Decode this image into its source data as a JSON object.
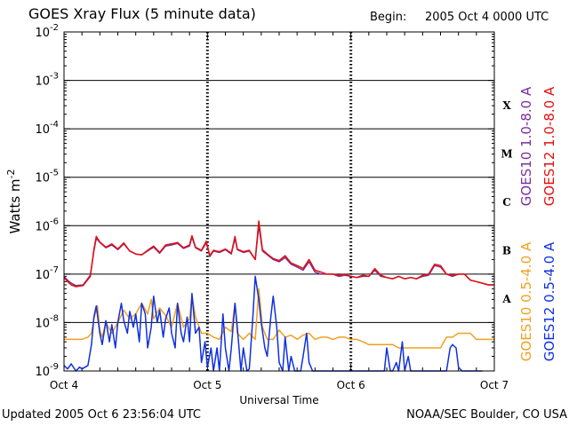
{
  "chart_data": {
    "type": "line",
    "title": "GOES Xray Flux (5 minute data)",
    "begin_label": "Begin:",
    "begin_value": "2005 Oct 4 0000 UTC",
    "xlabel": "Universal Time",
    "ylabel_base": "Watts m",
    "ylabel_exp": "-2",
    "y_scale": "log",
    "ylim": [
      1e-09,
      0.01
    ],
    "xlim": [
      0,
      72
    ],
    "x_ticks": [
      {
        "x": 0,
        "label": "Oct 4"
      },
      {
        "x": 24,
        "label": "Oct 5"
      },
      {
        "x": 48,
        "label": "Oct 6"
      },
      {
        "x": 72,
        "label": "Oct 7"
      }
    ],
    "y_ticks": [
      {
        "exp": -2,
        "base": "10",
        "sup": "-2"
      },
      {
        "exp": -3,
        "base": "10",
        "sup": "-3"
      },
      {
        "exp": -4,
        "base": "10",
        "sup": "-4"
      },
      {
        "exp": -5,
        "base": "10",
        "sup": "-5"
      },
      {
        "exp": -6,
        "base": "10",
        "sup": "-6"
      },
      {
        "exp": -7,
        "base": "10",
        "sup": "-7"
      },
      {
        "exp": -8,
        "base": "10",
        "sup": "-8"
      },
      {
        "exp": -9,
        "base": "10",
        "sup": "-9"
      }
    ],
    "flare_classes": [
      {
        "label": "X",
        "exp": -3.5
      },
      {
        "label": "M",
        "exp": -4.5
      },
      {
        "label": "C",
        "exp": -5.5
      },
      {
        "label": "B",
        "exp": -6.5
      },
      {
        "label": "A",
        "exp": -7.5
      }
    ],
    "grid": "horizontal at decades from 1e-8 to 1e-3, dashed vertical day dividers",
    "legend_right_outer": [
      {
        "name": "GOES10 1.0-8.0 A",
        "color": "#7a2e9e"
      },
      {
        "name": "GOES10 0.5-4.0 A",
        "color": "#f0a020"
      }
    ],
    "legend_right_inner": [
      {
        "name": "GOES12 1.0-8.0 A",
        "color": "#e21010"
      },
      {
        "name": "GOES12 0.5-4.0 A",
        "color": "#1030e0"
      }
    ],
    "series": [
      {
        "name": "GOES10 1.0-8.0 A",
        "color": "#7a2e9e",
        "x": [
          0,
          0.6,
          1.2,
          2.0,
          3.2,
          4.4,
          5.0,
          5.4,
          6.0,
          7.0,
          8.0,
          9.0,
          10.0,
          11.0,
          12.0,
          13.0,
          14.0,
          15.0,
          16.0,
          17.0,
          18.0,
          19.0,
          20.0,
          21.0,
          21.4,
          22.0,
          23.0,
          23.8,
          24.4,
          25.0,
          26.0,
          27.0,
          28.0,
          28.6,
          29.0,
          30.0,
          31.0,
          32.0,
          32.6,
          33.2,
          34.0,
          35.0,
          36.0,
          37.0,
          38.0,
          39.0,
          40.0,
          41.0,
          42.0,
          43.0,
          44.0,
          45.0,
          46.0,
          47.0,
          48.0,
          49.0,
          50.0,
          51.0,
          52.0,
          53.0,
          54.0,
          55.0,
          56.0,
          57.0,
          58.0,
          59.0,
          60.0,
          61.0,
          62.0,
          63.0,
          64.0,
          65.0,
          66.0,
          67.0,
          68.0,
          69.0,
          70.0,
          71.0,
          72.0
        ],
        "values": [
          9e-08,
          7.5e-08,
          6.5e-08,
          5.8e-08,
          6e-08,
          9.5e-08,
          3e-07,
          5.5e-07,
          4.5e-07,
          3.5e-07,
          4e-07,
          3.2e-07,
          4.2e-07,
          3e-07,
          2.6e-07,
          2.5e-07,
          3e-07,
          3.6e-07,
          2.7e-07,
          3.8e-07,
          4e-07,
          4.3e-07,
          3.4e-07,
          3.8e-07,
          5.8e-07,
          3.5e-07,
          3e-07,
          4.5e-07,
          2.3e-07,
          3e-07,
          2.8e-07,
          3.2e-07,
          2.6e-07,
          5.5e-07,
          3.2e-07,
          2.8e-07,
          3e-07,
          2e-07,
          1e-06,
          3e-07,
          2.5e-07,
          2e-07,
          1.8e-07,
          2.2e-07,
          1.6e-07,
          1.4e-07,
          1.2e-07,
          1.8e-07,
          1.1e-07,
          1e-07,
          1e-07,
          1e-07,
          9e-08,
          9.5e-08,
          9e-08,
          8.5e-08,
          9e-08,
          9e-08,
          1.2e-07,
          9e-08,
          8.5e-08,
          8e-08,
          9e-08,
          8e-08,
          8.5e-08,
          8e-08,
          9e-08,
          9.5e-08,
          1.5e-07,
          1.4e-07,
          1e-07,
          9e-08,
          1e-07,
          1e-07,
          7.5e-08,
          7e-08,
          6.5e-08,
          6e-08,
          6e-08
        ]
      },
      {
        "name": "GOES12 1.0-8.0 A",
        "color": "#e21010",
        "x": [
          0,
          0.6,
          1.2,
          2.0,
          3.2,
          4.4,
          5.0,
          5.4,
          6.0,
          7.0,
          8.0,
          9.0,
          10.0,
          11.0,
          12.0,
          13.0,
          14.0,
          15.0,
          16.0,
          17.0,
          18.0,
          19.0,
          20.0,
          21.0,
          21.4,
          22.0,
          23.0,
          23.8,
          24.4,
          25.0,
          26.0,
          27.0,
          28.0,
          28.6,
          29.0,
          30.0,
          31.0,
          32.0,
          32.6,
          33.2,
          34.0,
          35.0,
          36.0,
          37.0,
          38.0,
          39.0,
          40.0,
          41.0,
          42.0,
          43.0,
          44.0,
          45.0,
          46.0,
          47.0,
          48.0,
          49.0,
          50.0,
          51.0,
          52.0,
          53.0,
          54.0,
          55.0,
          56.0,
          57.0,
          58.0,
          59.0,
          60.0,
          61.0,
          62.0,
          63.0,
          64.0,
          65.0,
          66.0,
          67.0,
          68.0,
          69.0,
          70.0,
          71.0,
          72.0
        ],
        "values": [
          8.5e-08,
          7e-08,
          6e-08,
          5.5e-08,
          5.8e-08,
          9e-08,
          3.2e-07,
          6e-07,
          4.6e-07,
          3.6e-07,
          4.2e-07,
          3.3e-07,
          4.4e-07,
          3e-07,
          2.6e-07,
          2.5e-07,
          3.1e-07,
          3.8e-07,
          2.8e-07,
          4e-07,
          4.2e-07,
          4.5e-07,
          3.5e-07,
          4e-07,
          6.2e-07,
          3.6e-07,
          3.1e-07,
          4.8e-07,
          2.4e-07,
          3.1e-07,
          2.9e-07,
          3.3e-07,
          2.7e-07,
          6e-07,
          3.3e-07,
          2.9e-07,
          3.1e-07,
          2e-07,
          1.25e-06,
          3.2e-07,
          2.6e-07,
          2.1e-07,
          1.9e-07,
          2.4e-07,
          1.7e-07,
          1.5e-07,
          1.3e-07,
          2e-07,
          1.2e-07,
          1.1e-07,
          1e-07,
          1e-07,
          9.5e-08,
          1e-07,
          9e-08,
          8.5e-08,
          9.5e-08,
          9e-08,
          1.3e-07,
          9.5e-08,
          8.5e-08,
          8e-08,
          9e-08,
          8e-08,
          8.5e-08,
          8e-08,
          9.5e-08,
          1e-07,
          1.6e-07,
          1.5e-07,
          1e-07,
          9.5e-08,
          1e-07,
          1e-07,
          7.5e-08,
          7e-08,
          6.5e-08,
          6e-08,
          6e-08
        ]
      },
      {
        "name": "GOES10 0.5-4.0 A",
        "color": "#f0a020",
        "x": [
          0,
          1.0,
          2.0,
          3.0,
          4.0,
          4.6,
          5.0,
          5.6,
          6.0,
          6.4,
          7.0,
          8.0,
          9.0,
          10.0,
          11.0,
          12.0,
          13.0,
          14.0,
          14.6,
          15.0,
          16.0,
          17.0,
          18.0,
          19.0,
          20.0,
          21.0,
          21.4,
          22.0,
          23.0,
          24.0,
          25.0,
          26.0,
          27.0,
          28.0,
          28.6,
          29.0,
          30.0,
          31.0,
          32.0,
          32.6,
          33.2,
          34.0,
          35.0,
          36.0,
          37.0,
          38.0,
          39.0,
          40.0,
          41.0,
          42.0,
          43.0,
          44.0,
          45.0,
          46.0,
          47.0,
          48.0,
          49.0,
          50.0,
          51.0,
          52.0,
          53.0,
          54.0,
          55.0,
          56.0,
          57.0,
          58.0,
          59.0,
          60.0,
          61.0,
          62.0,
          63.0,
          64.0,
          65.0,
          66.0,
          67.0,
          68.0,
          69.0,
          70.0,
          71.0,
          72.0
        ],
        "values": [
          4.5e-09,
          4.5e-09,
          4.5e-09,
          4.5e-09,
          5e-09,
          6e-09,
          1.2e-08,
          2.2e-08,
          7e-09,
          5e-09,
          1e-08,
          6e-09,
          1e-08,
          1.8e-08,
          1.2e-08,
          1.5e-08,
          2.5e-08,
          1.5e-08,
          3e-08,
          1.2e-08,
          2e-08,
          1.4e-08,
          8e-09,
          2.5e-08,
          8e-09,
          1.2e-08,
          3.5e-08,
          1.3e-08,
          6e-09,
          6e-09,
          5e-09,
          4.5e-09,
          8e-09,
          6.5e-09,
          2.5e-08,
          6e-09,
          4.5e-09,
          6e-09,
          4.5e-09,
          5e-08,
          8e-09,
          4.5e-09,
          4.5e-09,
          7e-09,
          5e-09,
          5.5e-09,
          4.5e-09,
          5.5e-09,
          6e-09,
          4.5e-09,
          5e-09,
          5e-09,
          4.5e-09,
          5e-09,
          5e-09,
          4.5e-09,
          4.5e-09,
          4e-09,
          3.5e-09,
          3.5e-09,
          3.5e-09,
          3.5e-09,
          3.5e-09,
          3e-09,
          3e-09,
          3e-09,
          3e-09,
          3e-09,
          3e-09,
          3e-09,
          3e-09,
          5e-09,
          5e-09,
          6e-09,
          6e-09,
          6e-09,
          4.5e-09,
          4.5e-09,
          4.5e-09,
          4.5e-09
        ]
      },
      {
        "name": "GOES12 0.5-4.0 A",
        "color": "#1030e0",
        "x": [
          0,
          0.6,
          1.2,
          2.0,
          2.6,
          3.0,
          4.0,
          4.6,
          5.0,
          5.4,
          6.0,
          6.4,
          7.0,
          7.6,
          8.0,
          8.6,
          9.0,
          9.6,
          10.0,
          10.6,
          11.0,
          11.6,
          12.0,
          12.6,
          13.0,
          13.6,
          14.0,
          14.6,
          15.0,
          15.6,
          16.0,
          16.6,
          17.0,
          17.6,
          18.0,
          18.6,
          19.0,
          19.6,
          20.0,
          20.6,
          21.0,
          21.4,
          22.0,
          22.6,
          23.0,
          23.6,
          24.0,
          24.6,
          25.0,
          25.6,
          26.0,
          26.6,
          27.0,
          27.6,
          28.0,
          28.6,
          29.0,
          29.6,
          30.0,
          30.6,
          31.0,
          31.6,
          32.0,
          32.6,
          33.0,
          33.6,
          34.0,
          34.6,
          35.0,
          35.6,
          36.0,
          36.6,
          37.0,
          37.6,
          38.0,
          38.6,
          39.0,
          39.6,
          40.0,
          40.6,
          41.0,
          41.6,
          42.0,
          42.6,
          43.0,
          43.6,
          44.0,
          44.6,
          45.0,
          45.6,
          46.0,
          46.6,
          47.0,
          47.6,
          48.0,
          48.6,
          49.0,
          49.6,
          50.0,
          50.6,
          51.0,
          51.6,
          52.0,
          52.6,
          53.0,
          53.6,
          54.0,
          54.6,
          55.0,
          55.6,
          56.0,
          56.6,
          57.0,
          57.6,
          58.0,
          58.6,
          59.0,
          59.6,
          60.0,
          60.6,
          61.0,
          61.6,
          62.0,
          62.6,
          63.0,
          63.6,
          64.0,
          64.6,
          65.0,
          65.6,
          66.0,
          66.6,
          67.0,
          67.6,
          68.0,
          68.6,
          69.0,
          69.6,
          70.0
        ],
        "values": [
          1.3e-09,
          1.1e-09,
          1.4e-09,
          1e-09,
          1.2e-09,
          1.1e-09,
          1.3e-09,
          3.5e-09,
          1.3e-08,
          2.2e-08,
          6e-09,
          3.5e-09,
          1.1e-08,
          4e-09,
          9e-09,
          3e-09,
          1e-08,
          2.5e-08,
          1.1e-08,
          6e-09,
          1.7e-08,
          8e-09,
          1.5e-08,
          4e-09,
          2.5e-08,
          1.5e-08,
          3e-09,
          8e-09,
          3.5e-08,
          1e-08,
          1.8e-08,
          5e-09,
          1.2e-08,
          2e-08,
          6e-09,
          3e-09,
          2.5e-08,
          6e-09,
          4e-09,
          1.3e-08,
          4e-09,
          4e-08,
          6e-09,
          8e-09,
          1.5e-09,
          4e-09,
          1.2e-09,
          3e-09,
          1e-09,
          3e-09,
          1e-09,
          1.5e-08,
          3e-09,
          1e-09,
          3e-09,
          2.5e-08,
          8e-09,
          1e-09,
          3e-09,
          1e-09,
          1.1e-09,
          1.3e-08,
          9e-08,
          3e-08,
          1e-08,
          3e-09,
          2e-09,
          1.3e-08,
          3.5e-08,
          8e-09,
          1.5e-09,
          1e-09,
          5e-09,
          1e-09,
          2e-09,
          1e-09,
          1e-09,
          1e-09,
          2e-09,
          6e-09,
          1.5e-09,
          1e-09,
          1e-09,
          1e-09,
          1e-09,
          1e-09,
          1e-09,
          1e-09,
          1e-09,
          1e-09,
          1e-09,
          1e-09,
          1e-09,
          1e-09,
          1e-09,
          1e-09,
          1e-09,
          1e-09,
          1e-09,
          1e-09,
          1e-09,
          1e-09,
          1e-09,
          1e-09,
          1e-09,
          1e-09,
          3e-09,
          1e-09,
          1e-09,
          1.5e-09,
          1e-09,
          4e-09,
          1e-09,
          2e-09,
          1e-09,
          1e-09,
          1e-09,
          1e-09,
          1e-09,
          1e-09,
          1e-09,
          1e-09,
          1e-09,
          1e-09,
          1e-09,
          1e-09,
          1e-09,
          3e-09,
          3.5e-09,
          3e-09,
          1.2e-09,
          1e-09,
          1e-09,
          1e-09,
          1e-09,
          1e-09,
          1e-09,
          1e-09,
          1e-09
        ]
      }
    ]
  },
  "footer": {
    "updated": "Updated 2005 Oct  6 23:56:04 UTC",
    "credit": "NOAA/SEC Boulder, CO USA"
  }
}
